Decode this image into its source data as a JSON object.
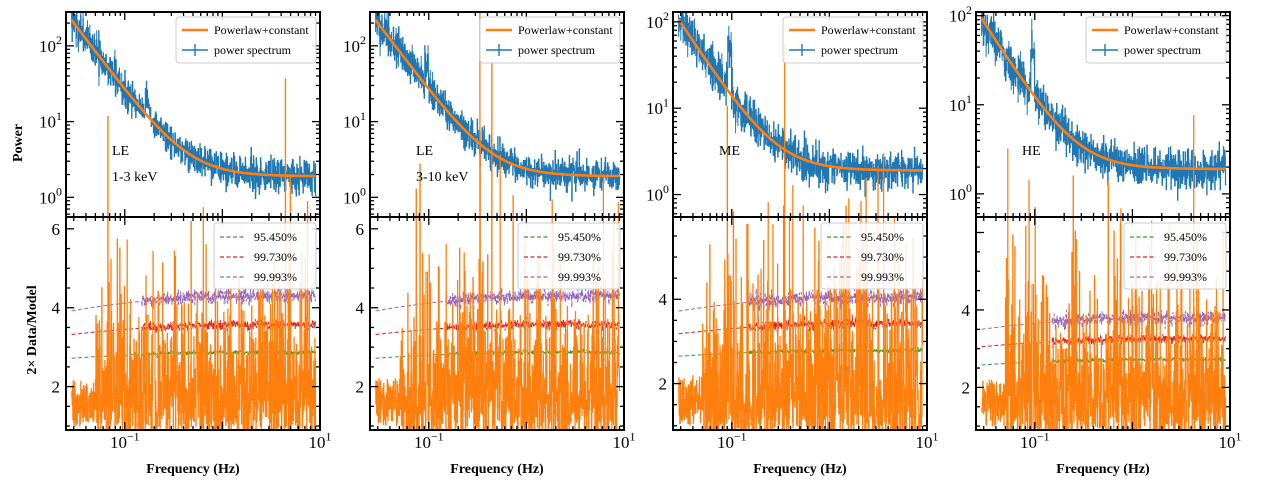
{
  "figure": {
    "ylabel_top": "Power",
    "ylabel_bottom": "2× Data/Model",
    "xlabel": "Frequency (Hz)"
  },
  "colors": {
    "spectrum": "#1f77b4",
    "model": "#ff7f0e",
    "ratio": "#ff7f0e",
    "sig1": "#2ca02c",
    "sig2": "#d62728",
    "sig3": "#9467bd"
  },
  "chart_data": [
    {
      "type": "line",
      "panel": "LE 1-3 keV",
      "annotation": [
        "LE",
        "1-3 keV"
      ],
      "xscale": "log",
      "xlim": [
        0.025,
        10
      ],
      "top": {
        "yscale": "log",
        "ylim": [
          0.55,
          280
        ],
        "yticks": [
          1,
          10,
          100
        ],
        "yticklabels": [
          [
            "10",
            "0"
          ],
          [
            "10",
            "1"
          ],
          [
            "10",
            "2"
          ]
        ],
        "legend": [
          "Powerlaw+constant",
          "power spectrum"
        ],
        "model": {
          "name": "Powerlaw+constant",
          "amp": 0.48,
          "index": 1.72,
          "const": 1.9
        },
        "spectrum": {
          "name": "power spectrum",
          "x_range": [
            0.0285,
            9.0
          ],
          "noise_frac": 0.25,
          "features": [
            {
              "f": 0.17,
              "factor": 1.7
            }
          ]
        }
      },
      "bottom": {
        "ylim": [
          0.9,
          6.3
        ],
        "yticks": [
          2,
          4,
          6
        ],
        "yticklabels": [
          "2",
          "4",
          "6"
        ],
        "legend": [
          "95.450%",
          "99.730%",
          "99.993%"
        ],
        "thresholds": [
          {
            "name": "95.450%",
            "start": 2.72,
            "end": 2.87
          },
          {
            "name": "99.730%",
            "start": 3.32,
            "end": 3.57
          },
          {
            "name": "99.993%",
            "start": 3.92,
            "end": 4.3
          }
        ],
        "ratio_spikes": [
          {
            "f": 0.17,
            "v": 3.8
          },
          {
            "f": 0.2,
            "v": 4.2
          }
        ]
      }
    },
    {
      "type": "line",
      "panel": "LE 3-10 keV",
      "annotation": [
        "LE",
        "3-10 keV"
      ],
      "xscale": "log",
      "xlim": [
        0.025,
        10
      ],
      "top": {
        "yscale": "log",
        "ylim": [
          0.55,
          280
        ],
        "yticks": [
          1,
          10,
          100
        ],
        "yticklabels": [
          [
            "10",
            "0"
          ],
          [
            "10",
            "1"
          ],
          [
            "10",
            "2"
          ]
        ],
        "legend": [
          "Powerlaw+constant",
          "power spectrum"
        ],
        "model": {
          "name": "Powerlaw+constant",
          "amp": 0.48,
          "index": 1.72,
          "const": 1.9
        },
        "spectrum": {
          "name": "power spectrum",
          "x_range": [
            0.0285,
            9.0
          ],
          "noise_frac": 0.25,
          "features": [
            {
              "f": 0.095,
              "factor": 2.3
            }
          ]
        }
      },
      "bottom": {
        "ylim": [
          0.9,
          6.3
        ],
        "yticks": [
          2,
          4,
          6
        ],
        "yticklabels": [
          "2",
          "4",
          "6"
        ],
        "legend": [
          "95.450%",
          "99.730%",
          "99.993%"
        ],
        "thresholds": [
          {
            "name": "95.450%",
            "start": 2.72,
            "end": 2.87
          },
          {
            "name": "99.730%",
            "start": 3.32,
            "end": 3.57
          },
          {
            "name": "99.993%",
            "start": 3.92,
            "end": 4.3
          }
        ],
        "ratio_spikes": [
          {
            "f": 0.095,
            "v": 4.9
          }
        ]
      }
    },
    {
      "type": "line",
      "panel": "ME",
      "annotation": [
        "ME"
      ],
      "xscale": "log",
      "xlim": [
        0.025,
        10
      ],
      "top": {
        "yscale": "log",
        "ylim": [
          0.55,
          130
        ],
        "yticks": [
          1,
          10,
          100
        ],
        "yticklabels": [
          [
            "10",
            "0"
          ],
          [
            "10",
            "1"
          ],
          [
            "10",
            "2"
          ]
        ],
        "legend": [
          "Powerlaw+constant",
          "power spectrum"
        ],
        "model": {
          "name": "Powerlaw+constant",
          "amp": 0.23,
          "index": 1.72,
          "const": 1.9
        },
        "spectrum": {
          "name": "power spectrum",
          "x_range": [
            0.0285,
            9.0
          ],
          "noise_frac": 0.25,
          "features": [
            {
              "f": 0.095,
              "factor": 3.5
            }
          ]
        }
      },
      "bottom": {
        "ylim": [
          0.9,
          5.95
        ],
        "yticks": [
          2,
          4
        ],
        "yticklabels": [
          "2",
          "4"
        ],
        "legend": [
          "95.450%",
          "99.730%",
          "99.993%"
        ],
        "thresholds": [
          {
            "name": "95.450%",
            "start": 2.65,
            "end": 2.78
          },
          {
            "name": "99.730%",
            "start": 3.18,
            "end": 3.42
          },
          {
            "name": "99.993%",
            "start": 3.72,
            "end": 4.04
          }
        ],
        "ratio_spikes": [
          {
            "f": 0.095,
            "v": 4.55
          }
        ]
      }
    },
    {
      "type": "line",
      "panel": "HE",
      "annotation": [
        "HE"
      ],
      "xscale": "log",
      "xlim": [
        0.025,
        10
      ],
      "top": {
        "yscale": "log",
        "ylim": [
          0.55,
          110
        ],
        "yticks": [
          1,
          10,
          100
        ],
        "yticklabels": [
          [
            "10",
            "0"
          ],
          [
            "10",
            "1"
          ],
          [
            "10",
            "2"
          ]
        ],
        "legend": [
          "Powerlaw+constant",
          "power spectrum"
        ],
        "model": {
          "name": "Powerlaw+constant",
          "amp": 0.2,
          "index": 1.72,
          "const": 1.9
        },
        "spectrum": {
          "name": "power spectrum",
          "x_range": [
            0.0285,
            9.0
          ],
          "noise_frac": 0.25,
          "features": [
            {
              "f": 0.095,
              "factor": 2.7
            }
          ]
        }
      },
      "bottom": {
        "ylim": [
          0.9,
          6.4
        ],
        "yticks": [
          2,
          4
        ],
        "yticklabels": [
          "2",
          "4"
        ],
        "legend": [
          "95.450%",
          "99.730%",
          "99.993%"
        ],
        "thresholds": [
          {
            "name": "95.450%",
            "start": 2.58,
            "end": 2.72
          },
          {
            "name": "99.730%",
            "start": 3.05,
            "end": 3.25
          },
          {
            "name": "99.993%",
            "start": 3.5,
            "end": 3.8
          }
        ],
        "ratio_spikes": [
          {
            "f": 0.095,
            "v": 4.65
          }
        ]
      }
    }
  ]
}
